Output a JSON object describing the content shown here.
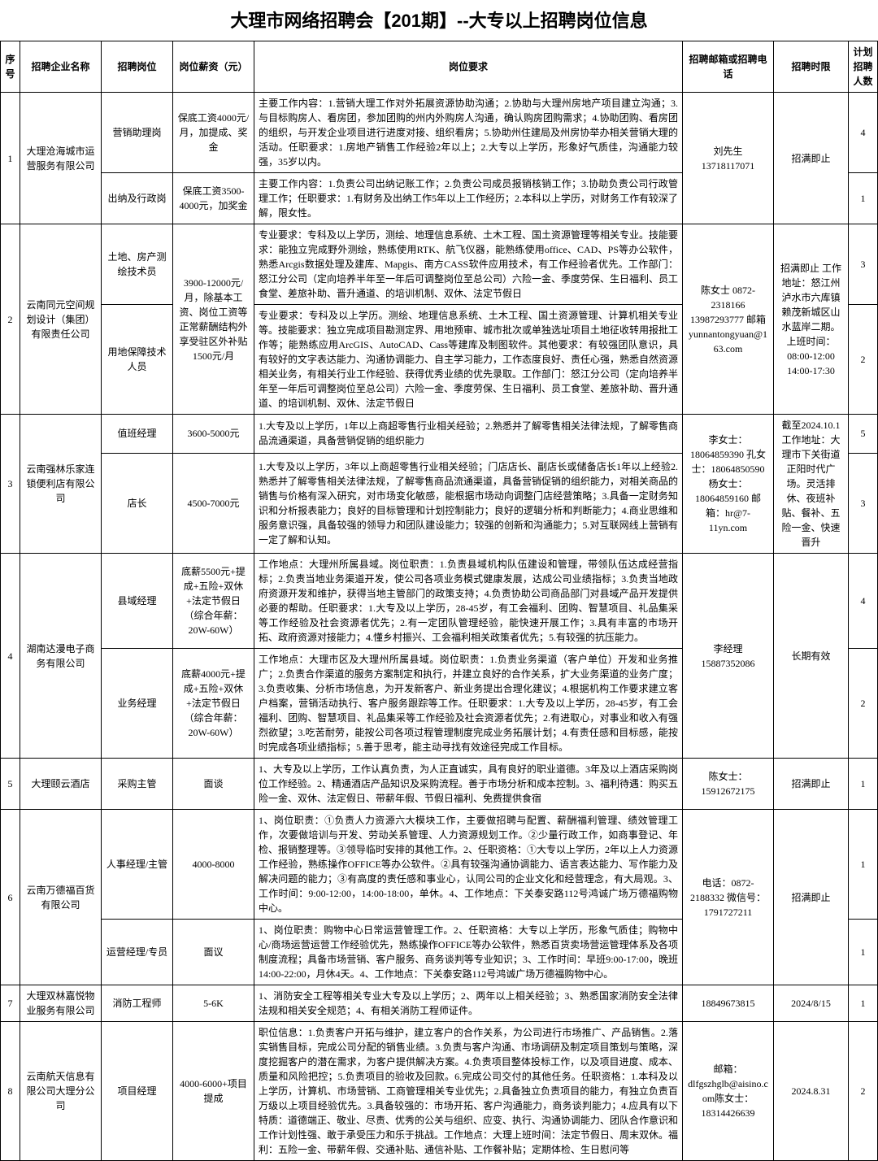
{
  "title": "大理市网络招聘会【201期】--大专以上招聘岗位信息",
  "headers": {
    "seq": "序号",
    "company": "招聘企业名称",
    "position": "招聘岗位",
    "salary": "岗位薪资（元）",
    "req": "岗位要求",
    "contact": "招聘邮箱或招聘电话",
    "deadline": "招聘时限",
    "count": "计划招聘人数"
  },
  "rows": [
    {
      "seq": "1",
      "company": "大理沧海城市运营服务有限公司",
      "contact": "刘先生 13718117071",
      "deadline": "招满即止",
      "positions": [
        {
          "name": "营销助理岗",
          "salary": "保底工资4000元/月，加提成、奖金",
          "req": "主要工作内容：1.营销大理工作对外拓展资源协助沟通；2.协助与大理州房地产项目建立沟通；3.与目标购房人、看房团，参加团购的州内外购房人沟通，确认购房团购需求；4.协助团购、看房团的组织，与开发企业项目进行进度对接、组织看房；5.协助州住建局及州房协举办相关营销大理的活动。任职要求：1.房地产销售工作经验2年以上；2.大专以上学历，形象好气质佳，沟通能力较强，35岁以内。",
          "count": "4"
        },
        {
          "name": "出纳及行政岗",
          "salary": "保底工资3500-4000元，加奖金",
          "req": "主要工作内容：1.负责公司出纳记账工作；2.负责公司成员报销核销工作；3.协助负责公司行政管理工作；任职要求：1.有财务及出纳工作5年以上工作经历；2.本科以上学历，对财务工作有较深了解，限女性。",
          "count": "1"
        }
      ]
    },
    {
      "seq": "2",
      "company": "云南同元空间规划设计（集团）有限责任公司",
      "contact": "陈女士 0872-2318166 13987293777 邮箱 yunnantongyuan@163.com",
      "deadline": "招满即止 工作地址：怒江州泸水市六库镇赖茂新城区山水蓝岸二期。上班时间：08:00-12:00 14:00-17:30",
      "salary_shared": "3900-12000元/月，除基本工资、岗位工资等正常薪酬结构外享受驻区外补贴1500元/月",
      "positions": [
        {
          "name": "土地、房产测绘技术员",
          "req": "专业要求：专科及以上学历，测绘、地理信息系统、土木工程、国土资源管理等相关专业。技能要求：能独立完成野外测绘，熟练使用RTK、航飞仪器，能熟练使用office、CAD、PS等办公软件，熟悉Arcgis数据处理及建库、Mapgis、南方CASS软件应用技术，有工作经验者优先。工作部门：怒江分公司（定向培养半年至一年后可调整岗位至总公司）六险一金、季度劳保、生日福利、员工食堂、差旅补助、晋升通道、的培训机制、双休、法定节假日",
          "count": "3"
        },
        {
          "name": "用地保障技术人员",
          "req": "专业要求：专科及以上学历。测绘、地理信息系统、土木工程、国土资源管理、计算机相关专业等。技能要求：独立完成项目勘测定界、用地预审、城市批次或单独选址项目土地征收转用报批工作等；能熟练应用ArcGIS、AutoCAD、Cass等建库及制图软件。其他要求：有较强团队意识，具有较好的文字表达能力、沟通协调能力、自主学习能力，工作态度良好、责任心强，熟悉自然资源相关业务，有相关行业工作经验、获得优秀业绩的优先录取。工作部门：怒江分公司（定向培养半年至一年后可调整岗位至总公司）六险一金、季度劳保、生日福利、员工食堂、差旅补助、晋升通道、的培训机制、双休、法定节假日",
          "count": "2"
        }
      ]
    },
    {
      "seq": "3",
      "company": "云南强林乐家连锁便利店有限公司",
      "contact": "李女士：18064859390 孔女士：18064850590 杨女士：18064859160 邮箱：hr@7-11yn.com",
      "deadline": "截至2024.10.1 工作地址：大理市下关街道正阳时代广场。灵活排休、夜班补贴、餐补、五险一金、快速晋升",
      "positions": [
        {
          "name": "值班经理",
          "salary": "3600-5000元",
          "req": "1.大专及以上学历，1年以上商超零售行业相关经验；2.熟悉并了解零售相关法律法规，了解零售商品流通渠道，具备营销促销的组织能力",
          "count": "5"
        },
        {
          "name": "店长",
          "salary": "4500-7000元",
          "req": "1.大专及以上学历，3年以上商超零售行业相关经验；门店店长、副店长或储备店长1年以上经验2.熟悉并了解零售相关法律法规，了解零售商品流通渠道，具备营销促销的组织能力，对相关商品的销售与价格有深入研究，对市场变化敏感，能根据市场动向调整门店经营策略；3.具备一定财务知识和分析报表能力；良好的目标管理和计划控制能力；良好的逻辑分析和判断能力；4.商业思维和服务意识强，具备较强的领导力和团队建设能力；较强的创新和沟通能力；5.对互联网线上营销有一定了解和认知。",
          "count": "3"
        }
      ]
    },
    {
      "seq": "4",
      "company": "湖南达漫电子商务有限公司",
      "contact": "李经理 15887352086",
      "deadline": "长期有效",
      "positions": [
        {
          "name": "县域经理",
          "salary": "底薪5500元+提成+五险+双休+法定节假日（综合年薪：20W-60W）",
          "req": "工作地点：大理州所属县域。岗位职责：1.负责县域机构队伍建设和管理，带领队伍达成经营指标；2.负责当地业务渠道开发，使公司各项业务模式健康发展，达成公司业绩指标；3.负责当地政府资源开发和维护，获得当地主管部门的政策支持；4.负责协助公司商品部门对县域产品开发提供必要的帮助。任职要求：1.大专及以上学历，28-45岁，有工会福利、团购、智慧项目、礼品集采等工作经验及社会资源者优先；2.有一定团队管理经验，能快速开展工作；3.具有丰富的市场开拓、政府资源对接能力；4.懂乡村振兴、工会福利相关政策者优先；5.有较强的抗压能力。",
          "count": "4"
        },
        {
          "name": "业务经理",
          "salary": "底薪4000元+提成+五险+双休+法定节假日（综合年薪：20W-60W）",
          "req": "工作地点：大理市区及大理州所属县域。岗位职责：1.负责业务渠道（客户单位）开发和业务推广；2.负责合作渠道的服务方案制定和执行，并建立良好的合作关系，扩大业务渠道的业务广度；3.负责收集、分析市场信息，为开发新客户、新业务提出合理化建议；4.根据机构工作要求建立客户档案，营销活动执行、客户服务跟踪等工作。任职要求：1.大专及以上学历，28-45岁，有工会福利、团购、智慧项目、礼品集采等工作经验及社会资源者优先；2.有进取心，对事业和收入有强烈欲望；3.吃苦耐劳，能按公司各项过程管理制度完成业务拓展计划；4.有责任感和目标感，能按时完成各项业绩指标；5.善于思考，能主动寻找有效途径完成工作目标。",
          "count": "2"
        }
      ]
    },
    {
      "seq": "5",
      "company": "大理颐云酒店",
      "contact": "陈女士：15912672175",
      "deadline": "招满即止",
      "positions": [
        {
          "name": "采购主管",
          "salary": "面谈",
          "req": "1、大专及以上学历，工作认真负责，为人正直诚实，具有良好的职业道德。3年及以上酒店采购岗位工作经验。2、精通酒店产品知识及采购流程。善于市场分析和成本控制。3、福利待遇：购买五险一金、双休、法定假日、带薪年假、节假日福利、免费提供食宿",
          "count": "1"
        }
      ]
    },
    {
      "seq": "6",
      "company": "云南万德福百货有限公司",
      "contact": "电话：0872-2188332 微信号：1791727211",
      "deadline": "招满即止",
      "positions": [
        {
          "name": "人事经理/主管",
          "salary": "4000-8000",
          "req": "1、岗位职责：①负责人力资源六大模块工作，主要做招聘与配置、薪酬福利管理、绩效管理工作，次要做培训与开发、劳动关系管理、人力资源规划工作。②少量行政工作，如商事登记、年检、报销整理等。③领导临时安排的其他工作。2、任职资格：①大专以上学历，2年以上人力资源工作经验，熟练操作OFFICE等办公软件。②具有较强沟通协调能力、语言表达能力、写作能力及解决问题的能力；③有高度的责任感和事业心，认同公司的企业文化和经营理念，有大局观。3、工作时间：9:00-12:00，14:00-18:00，单休。4、工作地点：下关泰安路112号鸿诚广场万德福购物中心。",
          "count": "1"
        },
        {
          "name": "运营经理/专员",
          "salary": "面议",
          "req": "1、岗位职责：购物中心日常运营管理工作。2、任职资格：大专以上学历，形象气质佳；购物中心/商场运营运营工作经验优先，熟练操作OFFICE等办公软件，熟悉百货卖场营运管理体系及各项制度流程；具备市场营销、客户服务、商务谈判等专业知识；3、工作时间：早班9:00-17:00，晚班14:00-22:00，月休4天。4、工作地点：下关泰安路112号鸿诚广场万德福购物中心。",
          "count": "1"
        }
      ]
    },
    {
      "seq": "7",
      "company": "大理双林嘉悦物业服务有限公司",
      "contact": "18849673815",
      "deadline": "2024/8/15",
      "positions": [
        {
          "name": "消防工程师",
          "salary": "5-6K",
          "req": "1、消防安全工程等相关专业大专及以上学历；2、两年以上相关经验；3、熟悉国家消防安全法律法规和相关安全规范；4、有相关消防工程师证件。",
          "count": "1"
        }
      ]
    },
    {
      "seq": "8",
      "company": "云南航天信息有限公司大理分公司",
      "contact": "邮箱：dlfgszhglb@aisino.com陈女士：18314426639",
      "deadline": "2024.8.31",
      "positions": [
        {
          "name": "项目经理",
          "salary": "4000-6000+项目提成",
          "req": "职位信息：1.负责客户开拓与维护，建立客户的合作关系，为公司进行市场推广、产品销售。2.落实销售目标，完成公司分配的销售业绩。3.负责与客户沟通、市场调研及制定项目策划与策略，深度挖掘客户的潜在需求，为客户提供解决方案。4.负责项目整体投标工作，以及项目进度、成本、质量和风险把控；5.负责项目的验收及回款。6.完成公司交付的其他任务。任职资格：1.本科及以上学历，计算机、市场营销、工商管理相关专业优先；2.具备独立负责项目的能力，有独立负责百万级以上项目经验优先。3.具备较强的：市场开拓、客户沟通能力，商务谈判能力；4.应具有以下特质：道德端正、敬业、尽责、优秀的公关与组织、应变、执行、沟通协调能力、团队合作意识和工作计划性强、敢于承受压力和乐于挑战。工作地点：大理上班时间：法定节假日、周末双休。福利：五险一金、带薪年假、交通补贴、通信补贴、工作餐补贴；定期体检、生日慰问等",
          "count": "2"
        }
      ]
    }
  ]
}
